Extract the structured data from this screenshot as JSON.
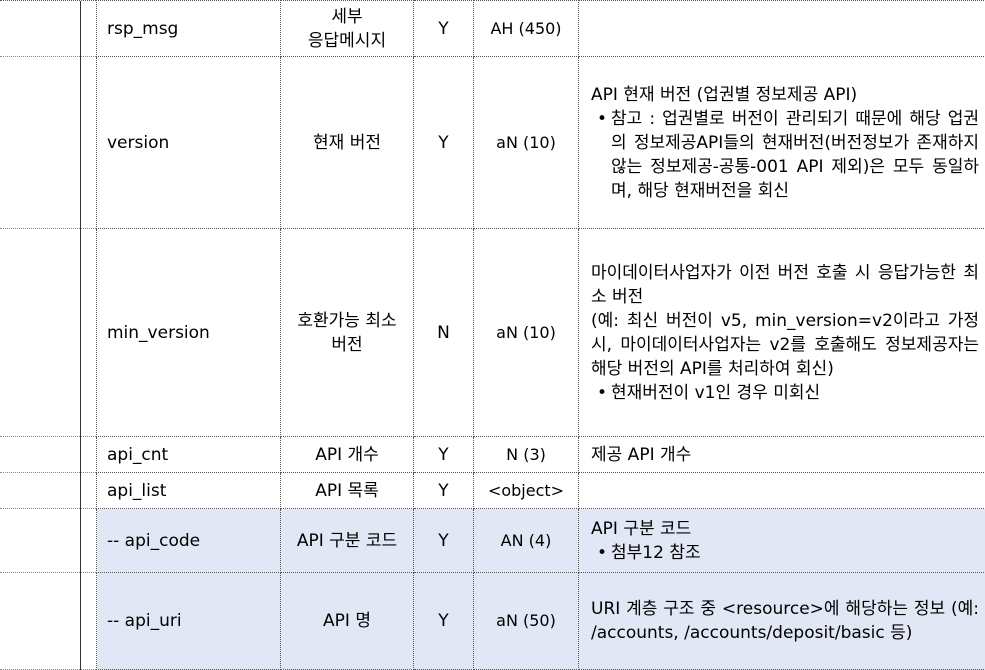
{
  "rows": [
    {
      "name": "rsp_msg",
      "desc": [
        "세부",
        "응답메시지"
      ],
      "required": "Y",
      "type": "AH (450)",
      "note": [],
      "sub": false
    },
    {
      "name": "version",
      "desc": [
        "현재 버전"
      ],
      "required": "Y",
      "type": "aN (10)",
      "note": [
        {
          "kind": "text",
          "text": "API 현재 버전 (업권별 정보제공 API)"
        },
        {
          "kind": "bullet",
          "text": "참고 : 업권별로 버전이 관리되기 때문에 해당 업권의 정보제공API들의 현재버전(버전정보가 존재하지 않는 정보제공-공통-001 API 제외)은 모두 동일하며, 해당 현재버전을 회신"
        }
      ],
      "sub": false
    },
    {
      "name": "min_version",
      "desc": [
        "호환가능 최소",
        "버전"
      ],
      "required": "N",
      "type": "aN (10)",
      "note": [
        {
          "kind": "text",
          "text": "마이데이터사업자가 이전 버전 호출 시 응답가능한 최소 버전"
        },
        {
          "kind": "text",
          "text": "(예: 최신 버전이 v5, min_version=v2이라고 가정 시, 마이데이터사업자는 v2를 호출해도 정보제공자는 해당 버전의 API를 처리하여 회신)"
        },
        {
          "kind": "bullet",
          "text": "현재버전이 v1인 경우 미회신"
        }
      ],
      "sub": false
    },
    {
      "name": "api_cnt",
      "desc": [
        "API 개수"
      ],
      "required": "Y",
      "type": "N (3)",
      "note": [
        {
          "kind": "text",
          "text": "제공 API 개수"
        }
      ],
      "sub": false
    },
    {
      "name": "api_list",
      "desc": [
        "API 목록"
      ],
      "required": "Y",
      "type": "<object>",
      "note": [],
      "sub": false
    },
    {
      "name": "--  api_code",
      "desc": [
        "API 구분 코드"
      ],
      "required": "Y",
      "type": "AN (4)",
      "note": [
        {
          "kind": "text",
          "text": "API 구분 코드"
        },
        {
          "kind": "bullet",
          "text": "첨부12 참조"
        }
      ],
      "sub": true
    },
    {
      "name": "--  api_uri",
      "desc": [
        "API 명"
      ],
      "required": "Y",
      "type": "aN (50)",
      "note": [
        {
          "kind": "text",
          "text": "URI 계층 구조 중 <resource>에 해당하는 정보 (예: /accounts, /accounts/deposit/basic 등)"
        }
      ],
      "sub": true
    }
  ]
}
